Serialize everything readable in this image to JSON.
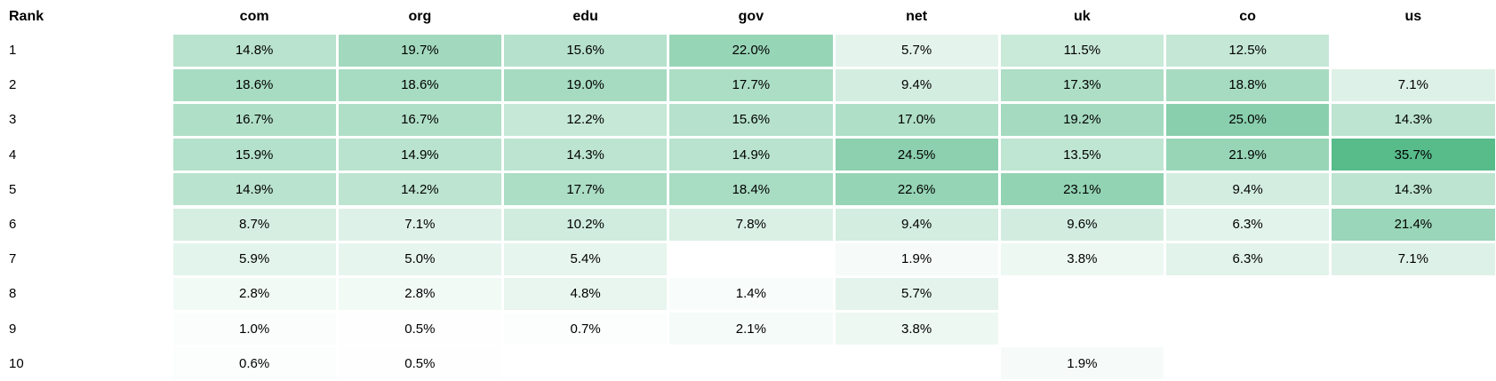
{
  "chart_data": {
    "type": "heatmap",
    "rank_label": "Rank",
    "columns": [
      "com",
      "org",
      "edu",
      "gov",
      "net",
      "uk",
      "co",
      "us"
    ],
    "rows": [
      {
        "rank": "1",
        "values": [
          14.8,
          19.7,
          15.6,
          22.0,
          5.7,
          11.5,
          12.5,
          null
        ]
      },
      {
        "rank": "2",
        "values": [
          18.6,
          18.6,
          19.0,
          17.7,
          9.4,
          17.3,
          18.8,
          7.1
        ]
      },
      {
        "rank": "3",
        "values": [
          16.7,
          16.7,
          12.2,
          15.6,
          17.0,
          19.2,
          25.0,
          14.3
        ]
      },
      {
        "rank": "4",
        "values": [
          15.9,
          14.9,
          14.3,
          14.9,
          24.5,
          13.5,
          21.9,
          35.7
        ]
      },
      {
        "rank": "5",
        "values": [
          14.9,
          14.2,
          17.7,
          18.4,
          22.6,
          23.1,
          9.4,
          14.3
        ]
      },
      {
        "rank": "6",
        "values": [
          8.7,
          7.1,
          10.2,
          7.8,
          9.4,
          9.6,
          6.3,
          21.4
        ]
      },
      {
        "rank": "7",
        "values": [
          5.9,
          5.0,
          5.4,
          null,
          1.9,
          3.8,
          6.3,
          7.1
        ]
      },
      {
        "rank": "8",
        "values": [
          2.8,
          2.8,
          4.8,
          1.4,
          5.7,
          null,
          null,
          null
        ]
      },
      {
        "rank": "9",
        "values": [
          1.0,
          0.5,
          0.7,
          2.1,
          3.8,
          null,
          null,
          null
        ]
      },
      {
        "rank": "10",
        "values": [
          0.6,
          0.5,
          null,
          null,
          null,
          1.9,
          null,
          null
        ]
      }
    ],
    "value_suffix": "%",
    "value_decimals": 1,
    "color_scale": {
      "min_value": 0,
      "max_value": 35.7,
      "min_color": "#ffffff",
      "max_color": "#57bb8a"
    },
    "text_color": "#000000",
    "gap_color": "#ffffff",
    "legend": "none",
    "grid": "off"
  }
}
